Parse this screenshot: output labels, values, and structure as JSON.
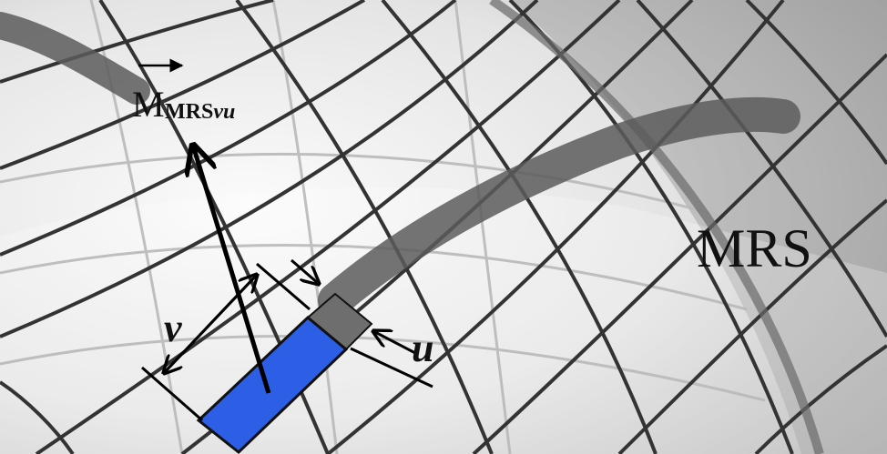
{
  "labels": {
    "vector_main": "M",
    "vector_sub_upright": "MRS",
    "vector_sub_italic": "vu",
    "mrs": "MRS",
    "v": "v",
    "u": "u"
  },
  "colors": {
    "background_light": "#f2f2f2",
    "background_dark": "#9a9a9a",
    "grid_line": "#3a3a3a",
    "track": "#5c5c5c",
    "element_blue": "#2d5fe6",
    "element_gray": "#6e6e6e",
    "ink": "#000000"
  }
}
